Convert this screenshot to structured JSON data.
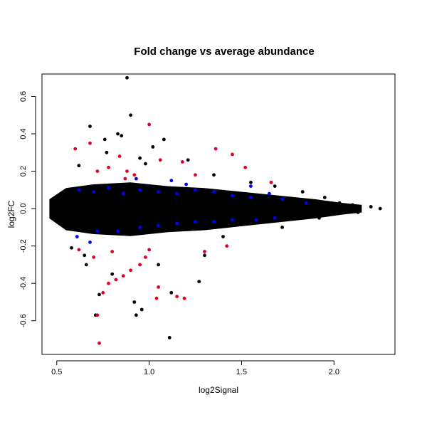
{
  "chart_data": {
    "type": "scatter",
    "title": "Fold change vs average abundance",
    "xlabel": "log2Signal",
    "ylabel": "log2FC",
    "xlim": [
      0.42,
      2.33
    ],
    "ylim": [
      -0.78,
      0.72
    ],
    "x_ticks": [
      0.5,
      1.0,
      1.5,
      2.0
    ],
    "x_tick_labels": [
      "0.5",
      "1.0",
      "1.5",
      "2.0"
    ],
    "y_ticks": [
      -0.6,
      -0.4,
      -0.2,
      0.0,
      0.2,
      0.4,
      0.6
    ],
    "y_tick_labels": [
      "-0.6",
      "-0.4",
      "-0.2",
      "0.0",
      "0.2",
      "0.4",
      "0.6"
    ],
    "grid": false,
    "legend": "none",
    "colors": {
      "default": "#000000",
      "blue": "#0000ff",
      "red": "#e0002a"
    },
    "series": [
      {
        "color": "#000000",
        "points": [
          [
            0.88,
            0.7
          ],
          [
            0.9,
            0.5
          ],
          [
            0.68,
            0.44
          ],
          [
            0.83,
            0.4
          ],
          [
            0.85,
            0.39
          ],
          [
            0.76,
            0.37
          ],
          [
            1.08,
            0.37
          ],
          [
            1.02,
            0.33
          ],
          [
            0.77,
            0.3
          ],
          [
            0.95,
            0.27
          ],
          [
            1.21,
            0.26
          ],
          [
            1.11,
            -0.69
          ],
          [
            0.93,
            -0.57
          ],
          [
            0.71,
            -0.57
          ],
          [
            0.96,
            -0.54
          ],
          [
            0.92,
            -0.5
          ],
          [
            1.12,
            -0.45
          ],
          [
            1.27,
            -0.39
          ],
          [
            0.73,
            -0.46
          ],
          [
            0.58,
            -0.21
          ],
          [
            0.65,
            -0.25
          ],
          [
            1.55,
            0.14
          ],
          [
            1.68,
            0.12
          ],
          [
            1.72,
            -0.1
          ],
          [
            1.95,
            0.06
          ],
          [
            2.03,
            0.03
          ],
          [
            2.1,
            0.02
          ],
          [
            2.2,
            0.01
          ],
          [
            2.25,
            0.0
          ],
          [
            2.13,
            -0.02
          ],
          [
            1.92,
            -0.05
          ],
          [
            1.83,
            0.09
          ],
          [
            1.4,
            -0.15
          ],
          [
            1.35,
            0.18
          ],
          [
            0.62,
            0.23
          ],
          [
            0.66,
            -0.3
          ],
          [
            0.8,
            -0.35
          ],
          [
            1.05,
            -0.3
          ],
          [
            0.98,
            0.24
          ],
          [
            1.3,
            -0.25
          ]
        ]
      },
      {
        "color": "#0000ff",
        "points": [
          [
            0.62,
            0.1
          ],
          [
            0.7,
            0.09
          ],
          [
            0.78,
            0.11
          ],
          [
            0.86,
            0.08
          ],
          [
            0.95,
            0.1
          ],
          [
            1.05,
            0.09
          ],
          [
            1.15,
            0.08
          ],
          [
            1.25,
            0.1
          ],
          [
            1.35,
            0.09
          ],
          [
            1.45,
            0.07
          ],
          [
            1.55,
            0.06
          ],
          [
            1.65,
            0.08
          ],
          [
            1.72,
            0.05
          ],
          [
            0.61,
            -0.15
          ],
          [
            0.72,
            -0.12
          ],
          [
            0.83,
            -0.12
          ],
          [
            0.95,
            -0.1
          ],
          [
            1.05,
            -0.09
          ],
          [
            1.15,
            -0.08
          ],
          [
            1.25,
            -0.07
          ],
          [
            1.35,
            -0.07
          ],
          [
            1.45,
            -0.06
          ],
          [
            1.58,
            -0.06
          ],
          [
            1.68,
            -0.05
          ],
          [
            1.85,
            0.03
          ],
          [
            0.93,
            0.16
          ],
          [
            1.12,
            0.15
          ],
          [
            1.2,
            0.13
          ],
          [
            0.68,
            -0.18
          ],
          [
            1.55,
            0.12
          ]
        ]
      },
      {
        "color": "#e0002a",
        "points": [
          [
            0.73,
            -0.72
          ],
          [
            0.72,
            -0.57
          ],
          [
            0.75,
            -0.45
          ],
          [
            0.78,
            -0.4
          ],
          [
            0.82,
            -0.38
          ],
          [
            0.86,
            -0.36
          ],
          [
            0.9,
            -0.33
          ],
          [
            0.95,
            -0.3
          ],
          [
            0.98,
            -0.26
          ],
          [
            1.0,
            -0.22
          ],
          [
            1.04,
            -0.48
          ],
          [
            1.15,
            -0.47
          ],
          [
            1.19,
            -0.48
          ],
          [
            1.05,
            -0.42
          ],
          [
            0.7,
            -0.26
          ],
          [
            0.62,
            -0.22
          ],
          [
            0.6,
            0.32
          ],
          [
            0.68,
            0.35
          ],
          [
            0.72,
            0.2
          ],
          [
            0.78,
            0.22
          ],
          [
            0.84,
            0.28
          ],
          [
            0.88,
            0.2
          ],
          [
            0.92,
            0.18
          ],
          [
            1.0,
            0.45
          ],
          [
            1.06,
            0.26
          ],
          [
            1.18,
            0.25
          ],
          [
            1.25,
            0.18
          ],
          [
            1.36,
            0.32
          ],
          [
            1.45,
            0.29
          ],
          [
            1.52,
            0.22
          ],
          [
            1.66,
            0.14
          ],
          [
            1.3,
            -0.23
          ],
          [
            1.42,
            -0.2
          ],
          [
            0.8,
            -0.23
          ],
          [
            0.87,
            0.16
          ]
        ]
      }
    ]
  }
}
